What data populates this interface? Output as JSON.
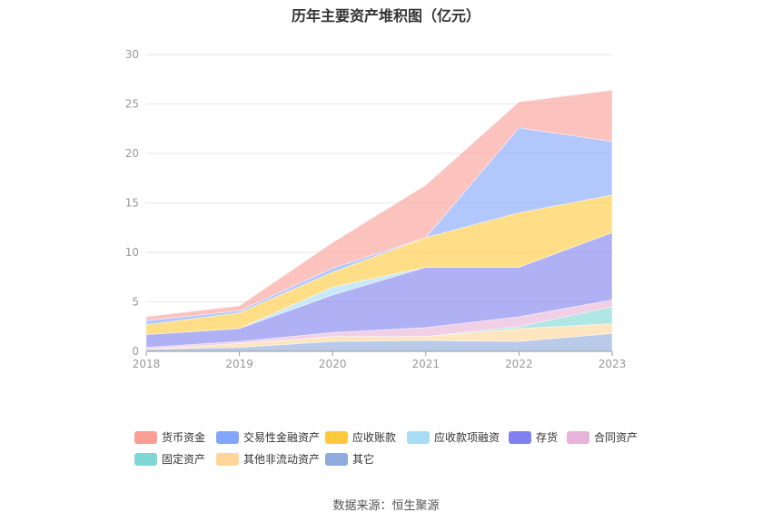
{
  "title": "历年主要资产堆积图（亿元）",
  "source": "数据来源：恒生聚源",
  "chart_data": {
    "type": "area",
    "stacked": true,
    "categories": [
      "2018",
      "2019",
      "2020",
      "2021",
      "2022",
      "2023"
    ],
    "ylim": [
      0,
      30
    ],
    "yticks": [
      0,
      5,
      10,
      15,
      20,
      25,
      30
    ],
    "grid": true,
    "legend_position": "bottom",
    "series": [
      {
        "name": "其它",
        "color": "#8faadc",
        "values": [
          0.2,
          0.4,
          1.0,
          1.1,
          1.0,
          1.8
        ]
      },
      {
        "name": "其他非流动资产",
        "color": "#ffd699",
        "values": [
          0.0,
          0.4,
          0.5,
          0.4,
          1.3,
          1.0
        ]
      },
      {
        "name": "固定资产",
        "color": "#7fd6d4",
        "values": [
          0.0,
          0.0,
          0.0,
          0.0,
          0.2,
          1.7
        ]
      },
      {
        "name": "合同资产",
        "color": "#e8b3d9",
        "values": [
          0.2,
          0.2,
          0.4,
          0.9,
          1.0,
          0.7
        ]
      },
      {
        "name": "存货",
        "color": "#8080ee",
        "values": [
          1.3,
          1.3,
          3.8,
          6.1,
          5.0,
          6.8
        ]
      },
      {
        "name": "应收款项融资",
        "color": "#a8dcf5",
        "values": [
          0.0,
          0.0,
          0.8,
          0.0,
          0.0,
          0.0
        ]
      },
      {
        "name": "应收账款",
        "color": "#ffc93d",
        "values": [
          1.0,
          1.6,
          1.5,
          3.0,
          5.5,
          3.8
        ]
      },
      {
        "name": "交易性金融资产",
        "color": "#82a6fa",
        "values": [
          0.4,
          0.2,
          0.4,
          0.0,
          8.6,
          5.4
        ]
      },
      {
        "name": "货币资金",
        "color": "#fa9e96",
        "values": [
          0.4,
          0.5,
          2.6,
          5.3,
          2.6,
          5.2
        ]
      }
    ],
    "legend_order": [
      "货币资金",
      "交易性金融资产",
      "应收账款",
      "应收款项融资",
      "存货",
      "合同资产",
      "固定资产",
      "其他非流动资产",
      "其它"
    ]
  }
}
